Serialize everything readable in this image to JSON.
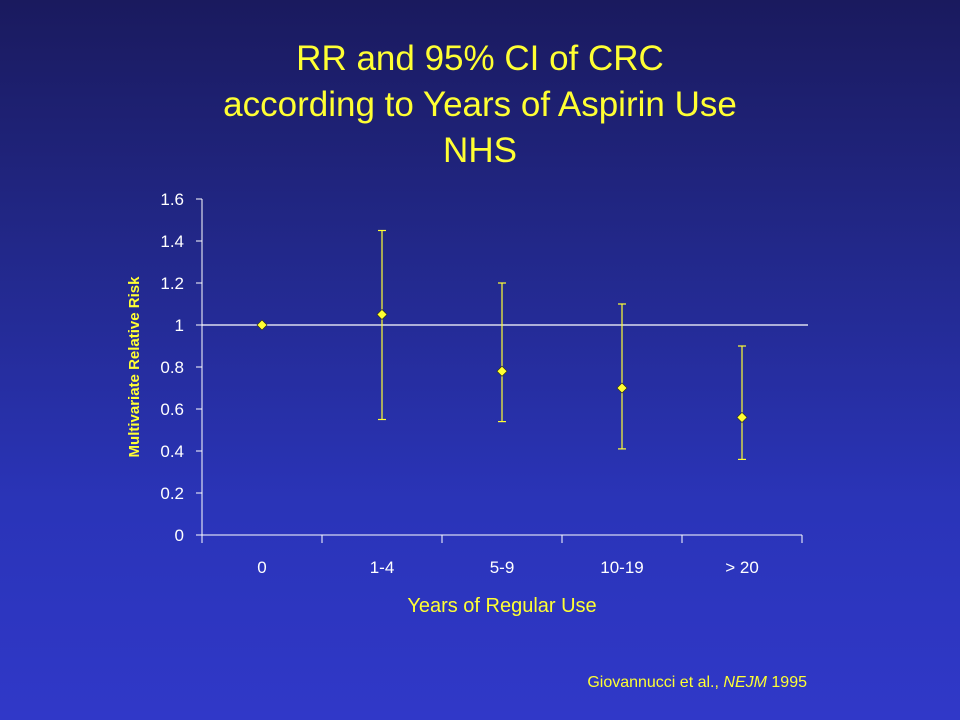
{
  "slide": {
    "title_lines": [
      "RR and 95% CI of CRC",
      "according to Years of Aspirin Use",
      "NHS"
    ],
    "citation": {
      "authors": "Giovannucci et al., ",
      "journal": "NEJM",
      "year": " 1995"
    }
  },
  "colors": {
    "accent": "#ffff33",
    "axis": "#ffff66",
    "background_top": "#1a1a5e",
    "background_bottom": "#3038c8"
  },
  "chart_data": {
    "type": "scatter",
    "title": "RR and 95% CI of CRC according to Years of Aspirin Use NHS",
    "xlabel": "Years of Regular Use",
    "ylabel": "Multivariate Relative Risk",
    "categories": [
      "0",
      "1-4",
      "5-9",
      "10-19",
      "> 20"
    ],
    "ylim": [
      0,
      1.6
    ],
    "yticks": [
      "0",
      "0.2",
      "0.4",
      "0.6",
      "0.8",
      "1",
      "1.2",
      "1.4",
      "1.6"
    ],
    "reference_line": 1,
    "series": [
      {
        "values": [
          1.0,
          1.05,
          0.78,
          0.7,
          0.56
        ],
        "ci_lower": [
          null,
          0.55,
          0.54,
          0.41,
          0.36
        ],
        "ci_upper": [
          null,
          1.45,
          1.2,
          1.1,
          0.9
        ]
      }
    ],
    "grid": false
  }
}
